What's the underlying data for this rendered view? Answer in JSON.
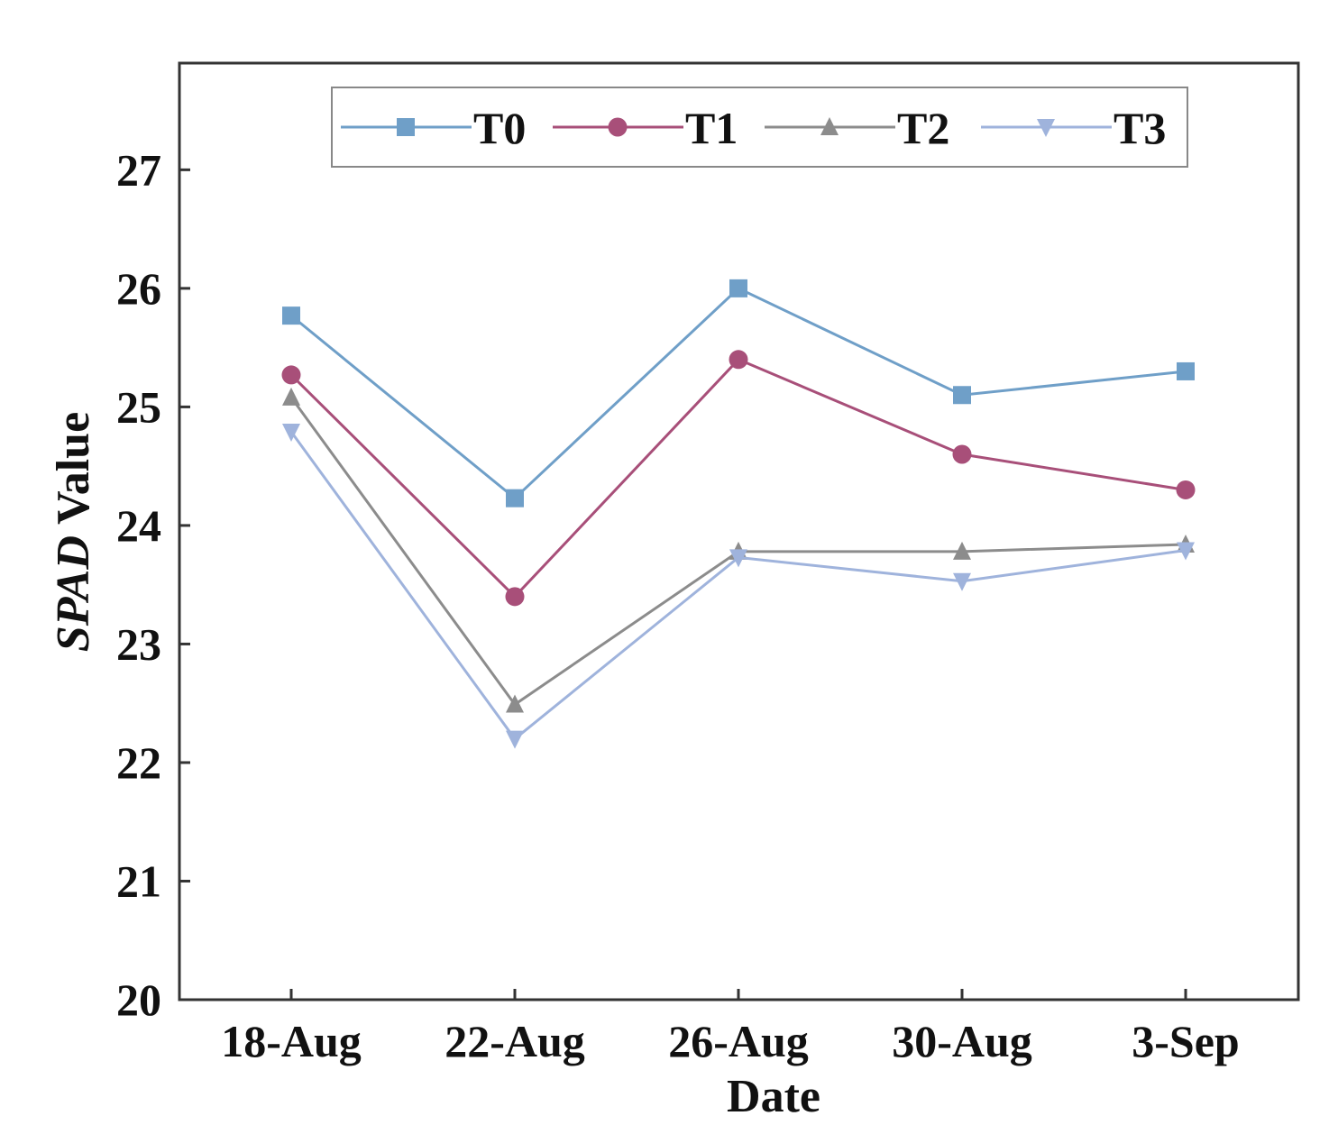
{
  "chart_data": {
    "type": "line",
    "title": "",
    "xlabel": "Date",
    "ylabel_italic": "SPAD",
    "ylabel_rest": " Value",
    "categories": [
      "18-Aug",
      "22-Aug",
      "26-Aug",
      "30-Aug",
      "3-Sep"
    ],
    "ylim": [
      20,
      27.9
    ],
    "yticks": [
      20,
      21,
      22,
      23,
      24,
      25,
      26,
      27
    ],
    "grid": false,
    "legend_position": "top",
    "series": [
      {
        "name": "T0",
        "marker": "square",
        "color": "#6f9fc8",
        "values": [
          25.77,
          24.23,
          26.0,
          25.1,
          25.3
        ]
      },
      {
        "name": "T1",
        "marker": "circle",
        "color": "#a84f79",
        "values": [
          25.27,
          23.4,
          25.4,
          24.6,
          24.3
        ]
      },
      {
        "name": "T2",
        "marker": "triangle-up",
        "color": "#8c8c8c",
        "values": [
          25.08,
          22.49,
          23.78,
          23.78,
          23.84
        ]
      },
      {
        "name": "T3",
        "marker": "triangle-down",
        "color": "#9fb3dc",
        "values": [
          24.79,
          22.2,
          23.73,
          23.53,
          23.79
        ]
      }
    ]
  }
}
